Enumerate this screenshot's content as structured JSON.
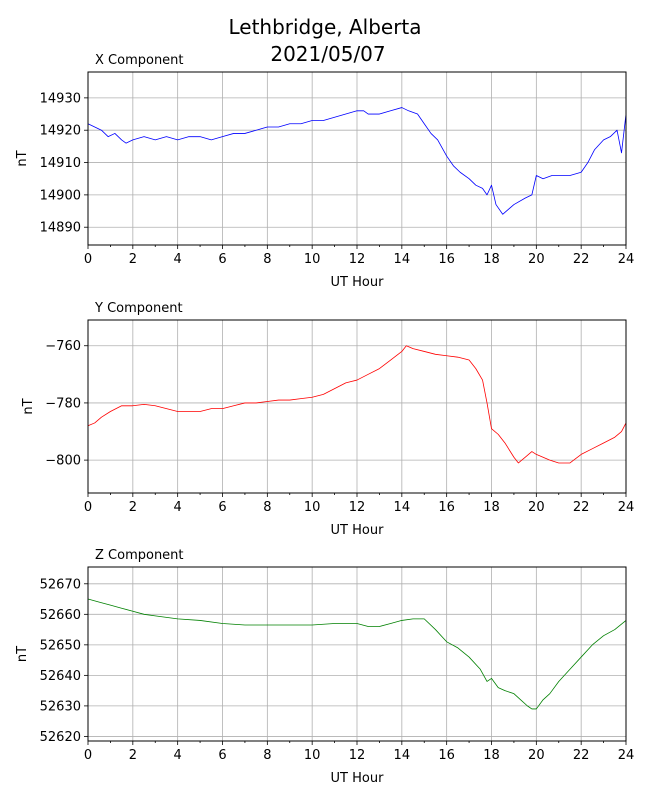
{
  "figure": {
    "title_line1": "Lethbridge, Alberta",
    "title_line2": "2021/05/07"
  },
  "chart_data": [
    {
      "type": "line",
      "title": "X Component",
      "xlabel": "UT Hour",
      "ylabel": "nT",
      "xlim": [
        0,
        24
      ],
      "ylim": [
        14884.5,
        14938
      ],
      "xticks": [
        0,
        2,
        4,
        6,
        8,
        10,
        12,
        14,
        16,
        18,
        20,
        22,
        24
      ],
      "yticks": [
        14890,
        14900,
        14910,
        14920,
        14930
      ],
      "grid": true,
      "color": "#0000ff",
      "series": [
        {
          "x": [
            0,
            0.3,
            0.6,
            0.9,
            1.2,
            1.5,
            1.7,
            2,
            2.5,
            3,
            3.5,
            4,
            4.5,
            5,
            5.5,
            6,
            6.5,
            7,
            7.5,
            8,
            8.5,
            9,
            9.5,
            10,
            10.5,
            11,
            11.5,
            12,
            12.3,
            12.5,
            13,
            13.5,
            14,
            14.3,
            14.7,
            15,
            15.3,
            15.6,
            16,
            16.3,
            16.6,
            17,
            17.3,
            17.6,
            17.8,
            18,
            18.2,
            18.5,
            19,
            19.5,
            19.8,
            20,
            20.3,
            20.7,
            21,
            21.5,
            22,
            22.3,
            22.6,
            23,
            23.3,
            23.6,
            23.8,
            24
          ],
          "y": [
            14922,
            14921,
            14920,
            14918,
            14919,
            14917,
            14916,
            14917,
            14918,
            14917,
            14918,
            14917,
            14918,
            14918,
            14917,
            14918,
            14919,
            14919,
            14920,
            14921,
            14921,
            14922,
            14922,
            14923,
            14923,
            14924,
            14925,
            14926,
            14926,
            14925,
            14925,
            14926,
            14927,
            14926,
            14925,
            14922,
            14919,
            14917,
            14912,
            14909,
            14907,
            14905,
            14903,
            14902,
            14900,
            14903,
            14897,
            14894,
            14897,
            14899,
            14900,
            14906,
            14905,
            14906,
            14906,
            14906,
            14907,
            14910,
            14914,
            14917,
            14918,
            14920,
            14913,
            14925
          ]
        }
      ]
    },
    {
      "type": "line",
      "title": "Y Component",
      "xlabel": "UT Hour",
      "ylabel": "nT",
      "xlim": [
        0,
        24
      ],
      "ylim": [
        -811.5,
        -751
      ],
      "xticks": [
        0,
        2,
        4,
        6,
        8,
        10,
        12,
        14,
        16,
        18,
        20,
        22,
        24
      ],
      "yticks": [
        -760,
        -780,
        -800
      ],
      "grid": true,
      "color": "#ff0000",
      "series": [
        {
          "x": [
            0,
            0.3,
            0.6,
            1,
            1.5,
            2,
            2.5,
            3,
            3.5,
            4,
            4.5,
            5,
            5.5,
            6,
            6.5,
            7,
            7.5,
            8,
            8.5,
            9,
            9.5,
            10,
            10.5,
            11,
            11.5,
            12,
            12.5,
            13,
            13.5,
            14,
            14.2,
            14.5,
            15,
            15.5,
            16,
            16.5,
            17,
            17.3,
            17.6,
            17.8,
            18,
            18.3,
            18.6,
            19,
            19.2,
            19.5,
            19.8,
            20,
            20.3,
            20.6,
            21,
            21.5,
            22,
            22.5,
            23,
            23.5,
            23.8,
            24
          ],
          "y": [
            -788,
            -787,
            -785,
            -783,
            -781,
            -781,
            -780.5,
            -781,
            -782,
            -783,
            -783,
            -783,
            -782,
            -782,
            -781,
            -780,
            -780,
            -779.5,
            -779,
            -779,
            -778.5,
            -778,
            -777,
            -775,
            -773,
            -772,
            -770,
            -768,
            -765,
            -762,
            -760,
            -761,
            -762,
            -763,
            -763.5,
            -764,
            -765,
            -768,
            -772,
            -780,
            -789,
            -791,
            -794,
            -799,
            -801,
            -799,
            -797,
            -798,
            -799,
            -800,
            -801,
            -801,
            -798,
            -796,
            -794,
            -792,
            -790,
            -787
          ]
        }
      ]
    },
    {
      "type": "line",
      "title": "Z Component",
      "xlabel": "UT Hour",
      "ylabel": "nT",
      "xlim": [
        0,
        24
      ],
      "ylim": [
        52618.5,
        52675.5
      ],
      "xticks": [
        0,
        2,
        4,
        6,
        8,
        10,
        12,
        14,
        16,
        18,
        20,
        22,
        24
      ],
      "yticks": [
        52620,
        52630,
        52640,
        52650,
        52660,
        52670
      ],
      "grid": true,
      "color": "#008000",
      "series": [
        {
          "x": [
            0,
            0.5,
            1,
            1.5,
            2,
            2.5,
            3,
            3.5,
            4,
            5,
            6,
            7,
            8,
            9,
            10,
            11,
            12,
            12.5,
            13,
            13.5,
            14,
            14.5,
            15,
            15.5,
            16,
            16.5,
            17,
            17.5,
            17.8,
            18,
            18.3,
            18.6,
            19,
            19.3,
            19.6,
            19.8,
            20,
            20.3,
            20.6,
            21,
            21.5,
            22,
            22.5,
            23,
            23.5,
            24
          ],
          "y": [
            52665,
            52664,
            52663,
            52662,
            52661,
            52660,
            52659.5,
            52659,
            52658.5,
            52658,
            52657,
            52656.5,
            52656.5,
            52656.5,
            52656.5,
            52657,
            52657,
            52656,
            52656,
            52657,
            52658,
            52658.5,
            52658.5,
            52655,
            52651,
            52649,
            52646,
            52642,
            52638,
            52639,
            52636,
            52635,
            52634,
            52632,
            52630,
            52629,
            52629,
            52632,
            52634,
            52638,
            52642,
            52646,
            52650,
            52653,
            52655,
            52658
          ]
        }
      ]
    }
  ]
}
